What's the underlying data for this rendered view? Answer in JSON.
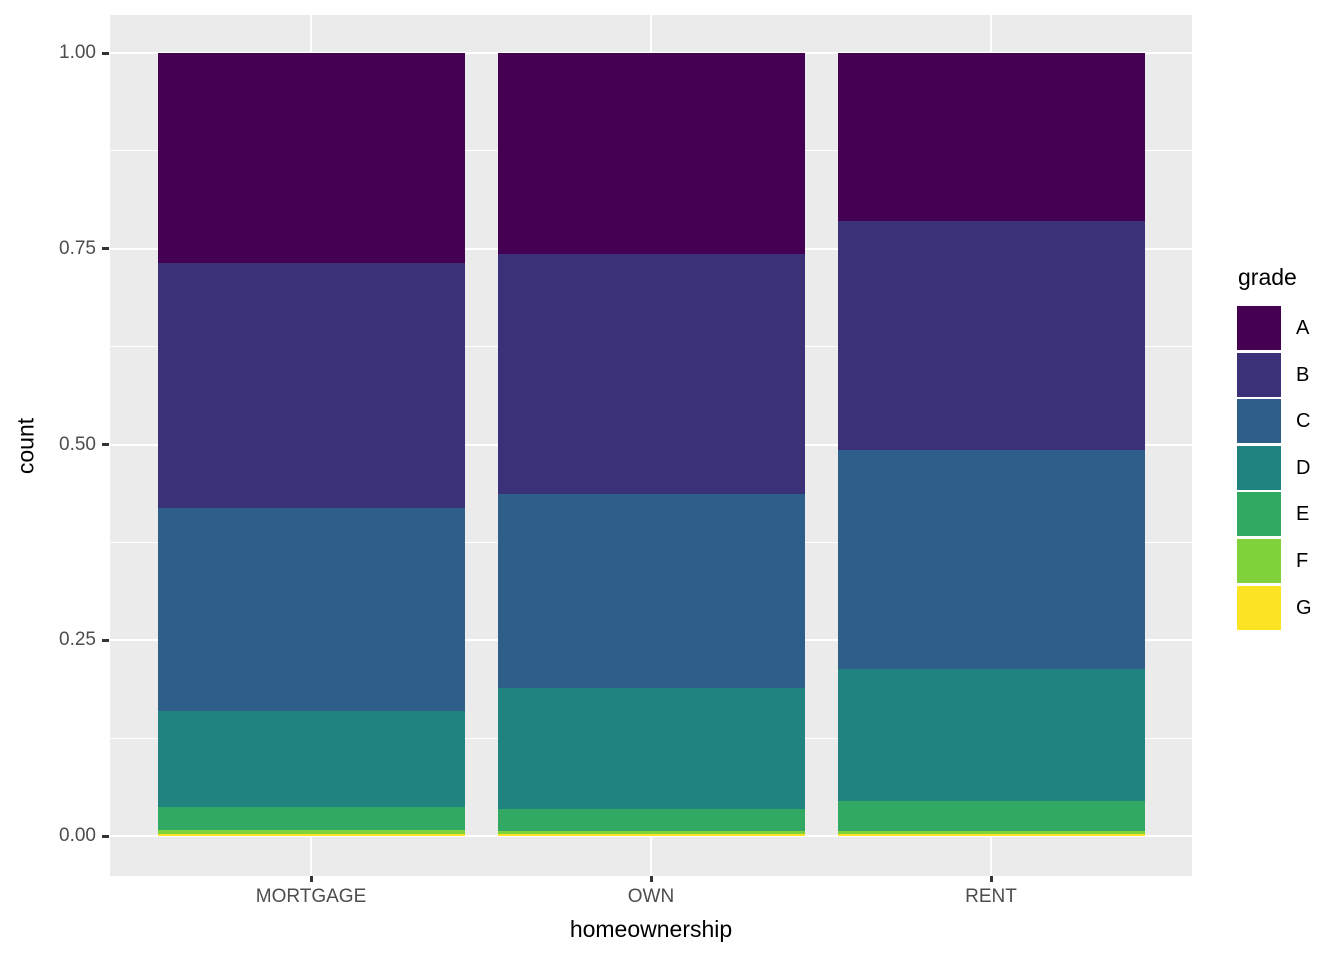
{
  "chart_data": {
    "type": "bar",
    "subtype": "stacked-fill-proportion",
    "title": "",
    "xlabel": "homeownership",
    "ylabel": "count",
    "legend_title": "grade",
    "legend_position": "right",
    "grid": true,
    "panel_bg": "#EBEBEB",
    "grid_color": "#FFFFFF",
    "tick_label_color": "#4D4D4D",
    "categories": [
      "MORTGAGE",
      "OWN",
      "RENT"
    ],
    "series": [
      {
        "name": "A",
        "color": "#440154",
        "values": [
          0.268,
          0.257,
          0.215
        ]
      },
      {
        "name": "B",
        "color": "#3B3178",
        "values": [
          0.313,
          0.306,
          0.292
        ]
      },
      {
        "name": "C",
        "color": "#2D5F8A",
        "values": [
          0.259,
          0.248,
          0.28
        ]
      },
      {
        "name": "D",
        "color": "#21837F",
        "values": [
          0.123,
          0.155,
          0.168
        ]
      },
      {
        "name": "E",
        "color": "#31A962",
        "values": [
          0.029,
          0.028,
          0.038
        ]
      },
      {
        "name": "F",
        "color": "#7FD23A",
        "values": [
          0.006,
          0.004,
          0.004
        ]
      },
      {
        "name": "G",
        "color": "#FCE324",
        "values": [
          0.002,
          0.002,
          0.003
        ]
      }
    ],
    "stack_order_bottom_to_top": [
      "G",
      "F",
      "E",
      "D",
      "C",
      "B",
      "A"
    ],
    "ylim": [
      0,
      1
    ],
    "yticks": [
      {
        "value": 0.0,
        "label": "0.00"
      },
      {
        "value": 0.25,
        "label": "0.25"
      },
      {
        "value": 0.5,
        "label": "0.50"
      },
      {
        "value": 0.75,
        "label": "0.75"
      },
      {
        "value": 1.0,
        "label": "1.00"
      }
    ],
    "minor_yticks": [
      0.125,
      0.375,
      0.625,
      0.875
    ]
  }
}
